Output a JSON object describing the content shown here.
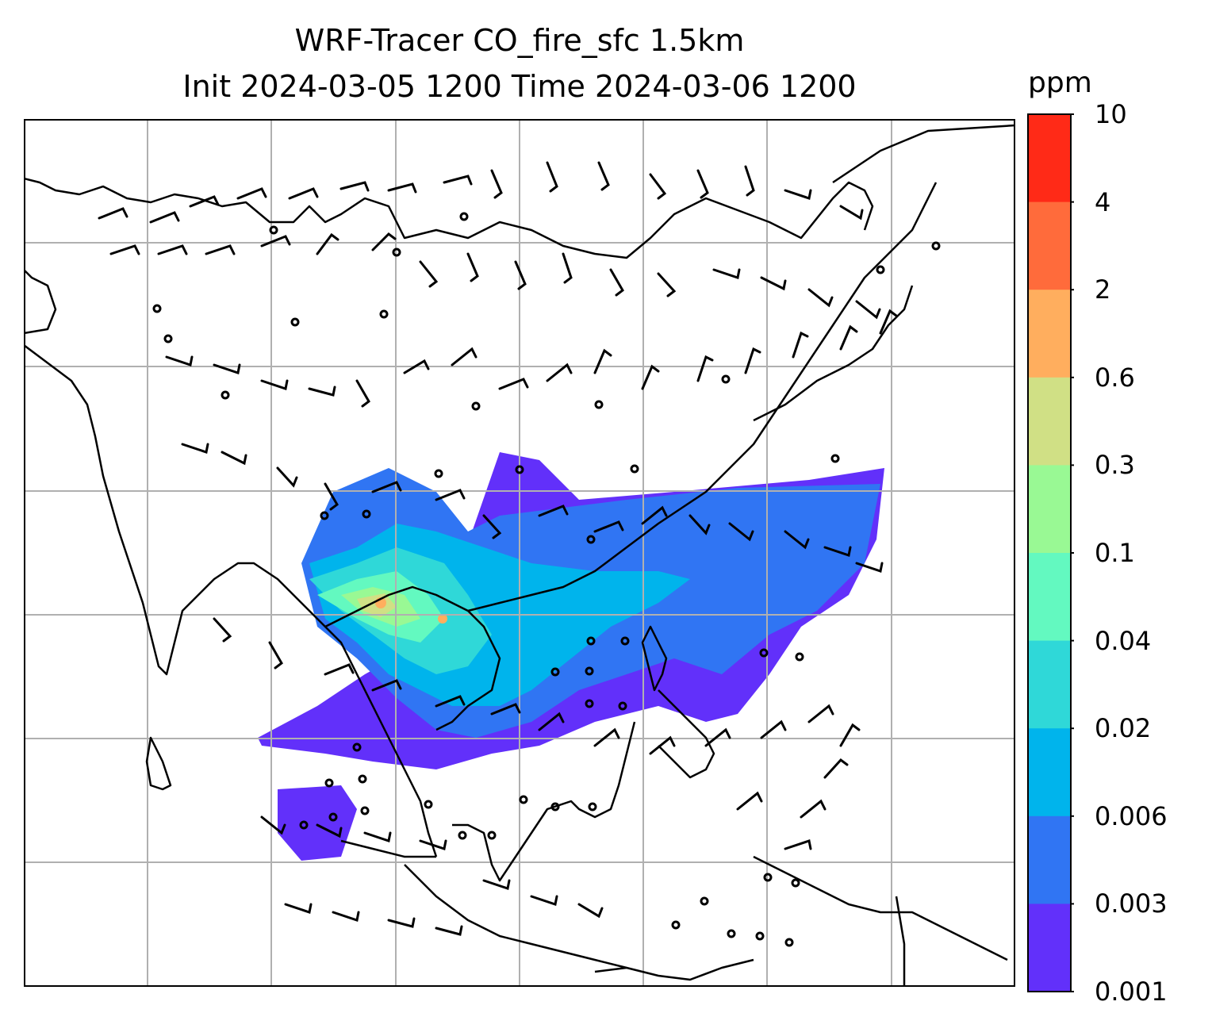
{
  "title": {
    "line1": "WRF-Tracer CO_fire_sfc 1.5km",
    "line2": "Init 2024-03-05 1200 Time 2024-03-06 1200"
  },
  "colorbar": {
    "unit": "ppm",
    "ticks": [
      "10",
      "4",
      "2",
      "0.6",
      "0.3",
      "0.1",
      "0.04",
      "0.02",
      "0.006",
      "0.003",
      "0.001"
    ],
    "colors": [
      "#ff2a17",
      "#ff6b3b",
      "#ffae5e",
      "#d0e085",
      "#99f994",
      "#63f9c0",
      "#2fd8d8",
      "#00b4ec",
      "#3075f3",
      "#6230fa"
    ]
  },
  "map": {
    "grid": "on",
    "projection_style": "regional map with coastlines, country borders, wind barbs and filled tracer contours"
  }
}
